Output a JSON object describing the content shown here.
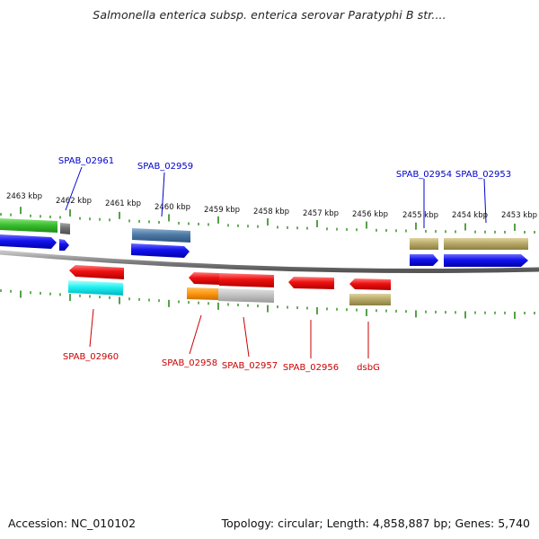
{
  "title": "Salmonella enterica subsp. enterica serovar Paratyphi B str....",
  "footer": {
    "accession": "Accession: NC_010102",
    "genome_info": "Topology: circular; Length: 4,858,887 bp; Genes: 5,740"
  },
  "colors": {
    "forward_label": "#0000cc",
    "reverse_label": "#cc0000",
    "tick": "#2a8a1a",
    "backbone": "#808080"
  },
  "scale_labels": [
    "2463 kbp",
    "2462 kbp",
    "2461 kbp",
    "2460 kbp",
    "2459 kbp",
    "2458 kbp",
    "2457 kbp",
    "2456 kbp",
    "2455 kbp",
    "2454 kbp",
    "2453 kbp"
  ],
  "forward_genes": [
    {
      "label": "SPAB_02961"
    },
    {
      "label": "SPAB_02959"
    },
    {
      "label": "SPAB_02954"
    },
    {
      "label": "SPAB_02953"
    }
  ],
  "reverse_genes": [
    {
      "label": "SPAB_02960"
    },
    {
      "label": "SPAB_02958"
    },
    {
      "label": "SPAB_02957"
    },
    {
      "label": "SPAB_02956"
    },
    {
      "label": "dsbG"
    }
  ]
}
